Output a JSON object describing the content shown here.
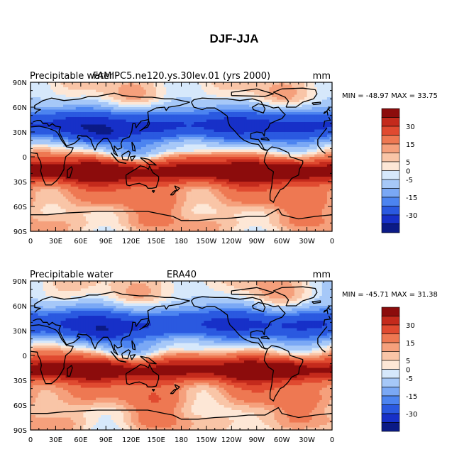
{
  "figure_title": "DJF-JJA",
  "palette": [
    "#0b1a86",
    "#1730c8",
    "#2a59e0",
    "#4c84f0",
    "#7aa8f5",
    "#a6c8f8",
    "#d6e8fb",
    "#fde7d6",
    "#f9c5a7",
    "#f5a07c",
    "#ee7852",
    "#e04a30",
    "#c42a1c",
    "#8c0c0c"
  ],
  "colorbar_labels": [
    "30",
    "15",
    "5",
    "0",
    "-5",
    "-15",
    "-30"
  ],
  "chart_data": [
    {
      "type": "heatmap",
      "title_left": "Precipitable water",
      "title_center": "FAMIPC5.ne120.ys.30lev.01 (yrs 2000)",
      "units": "mm",
      "stats": "MIN = -48.97 MAX =  33.75",
      "min": -48.97,
      "max": 33.75,
      "x_ticks": [
        "0",
        "30E",
        "60E",
        "90E",
        "120E",
        "150E",
        "180",
        "150W",
        "120W",
        "90W",
        "60W",
        "30W",
        "0"
      ],
      "y_ticks": [
        "90N",
        "60N",
        "30N",
        "0",
        "30S",
        "60S",
        "90S"
      ],
      "xlim": [
        0,
        360
      ],
      "ylim": [
        -90,
        90
      ],
      "contour_levels": [
        -40,
        -30,
        -20,
        -15,
        -10,
        -5,
        -2.5,
        0,
        2.5,
        5,
        10,
        15,
        20,
        30,
        40
      ]
    },
    {
      "type": "heatmap",
      "title_left": "Precipitable water",
      "title_center": "ERA40",
      "units": "mm",
      "stats": "MIN = -45.71 MAX =  31.38",
      "min": -45.71,
      "max": 31.38,
      "x_ticks": [
        "0",
        "30E",
        "60E",
        "90E",
        "120E",
        "150E",
        "180",
        "150W",
        "120W",
        "90W",
        "60W",
        "30W",
        "0"
      ],
      "y_ticks": [
        "90N",
        "60N",
        "30N",
        "0",
        "30S",
        "60S",
        "90S"
      ],
      "xlim": [
        0,
        360
      ],
      "ylim": [
        -90,
        90
      ],
      "contour_levels": [
        -40,
        -30,
        -20,
        -15,
        -10,
        -5,
        -2.5,
        0,
        2.5,
        5,
        10,
        15,
        20,
        30,
        40
      ]
    }
  ]
}
